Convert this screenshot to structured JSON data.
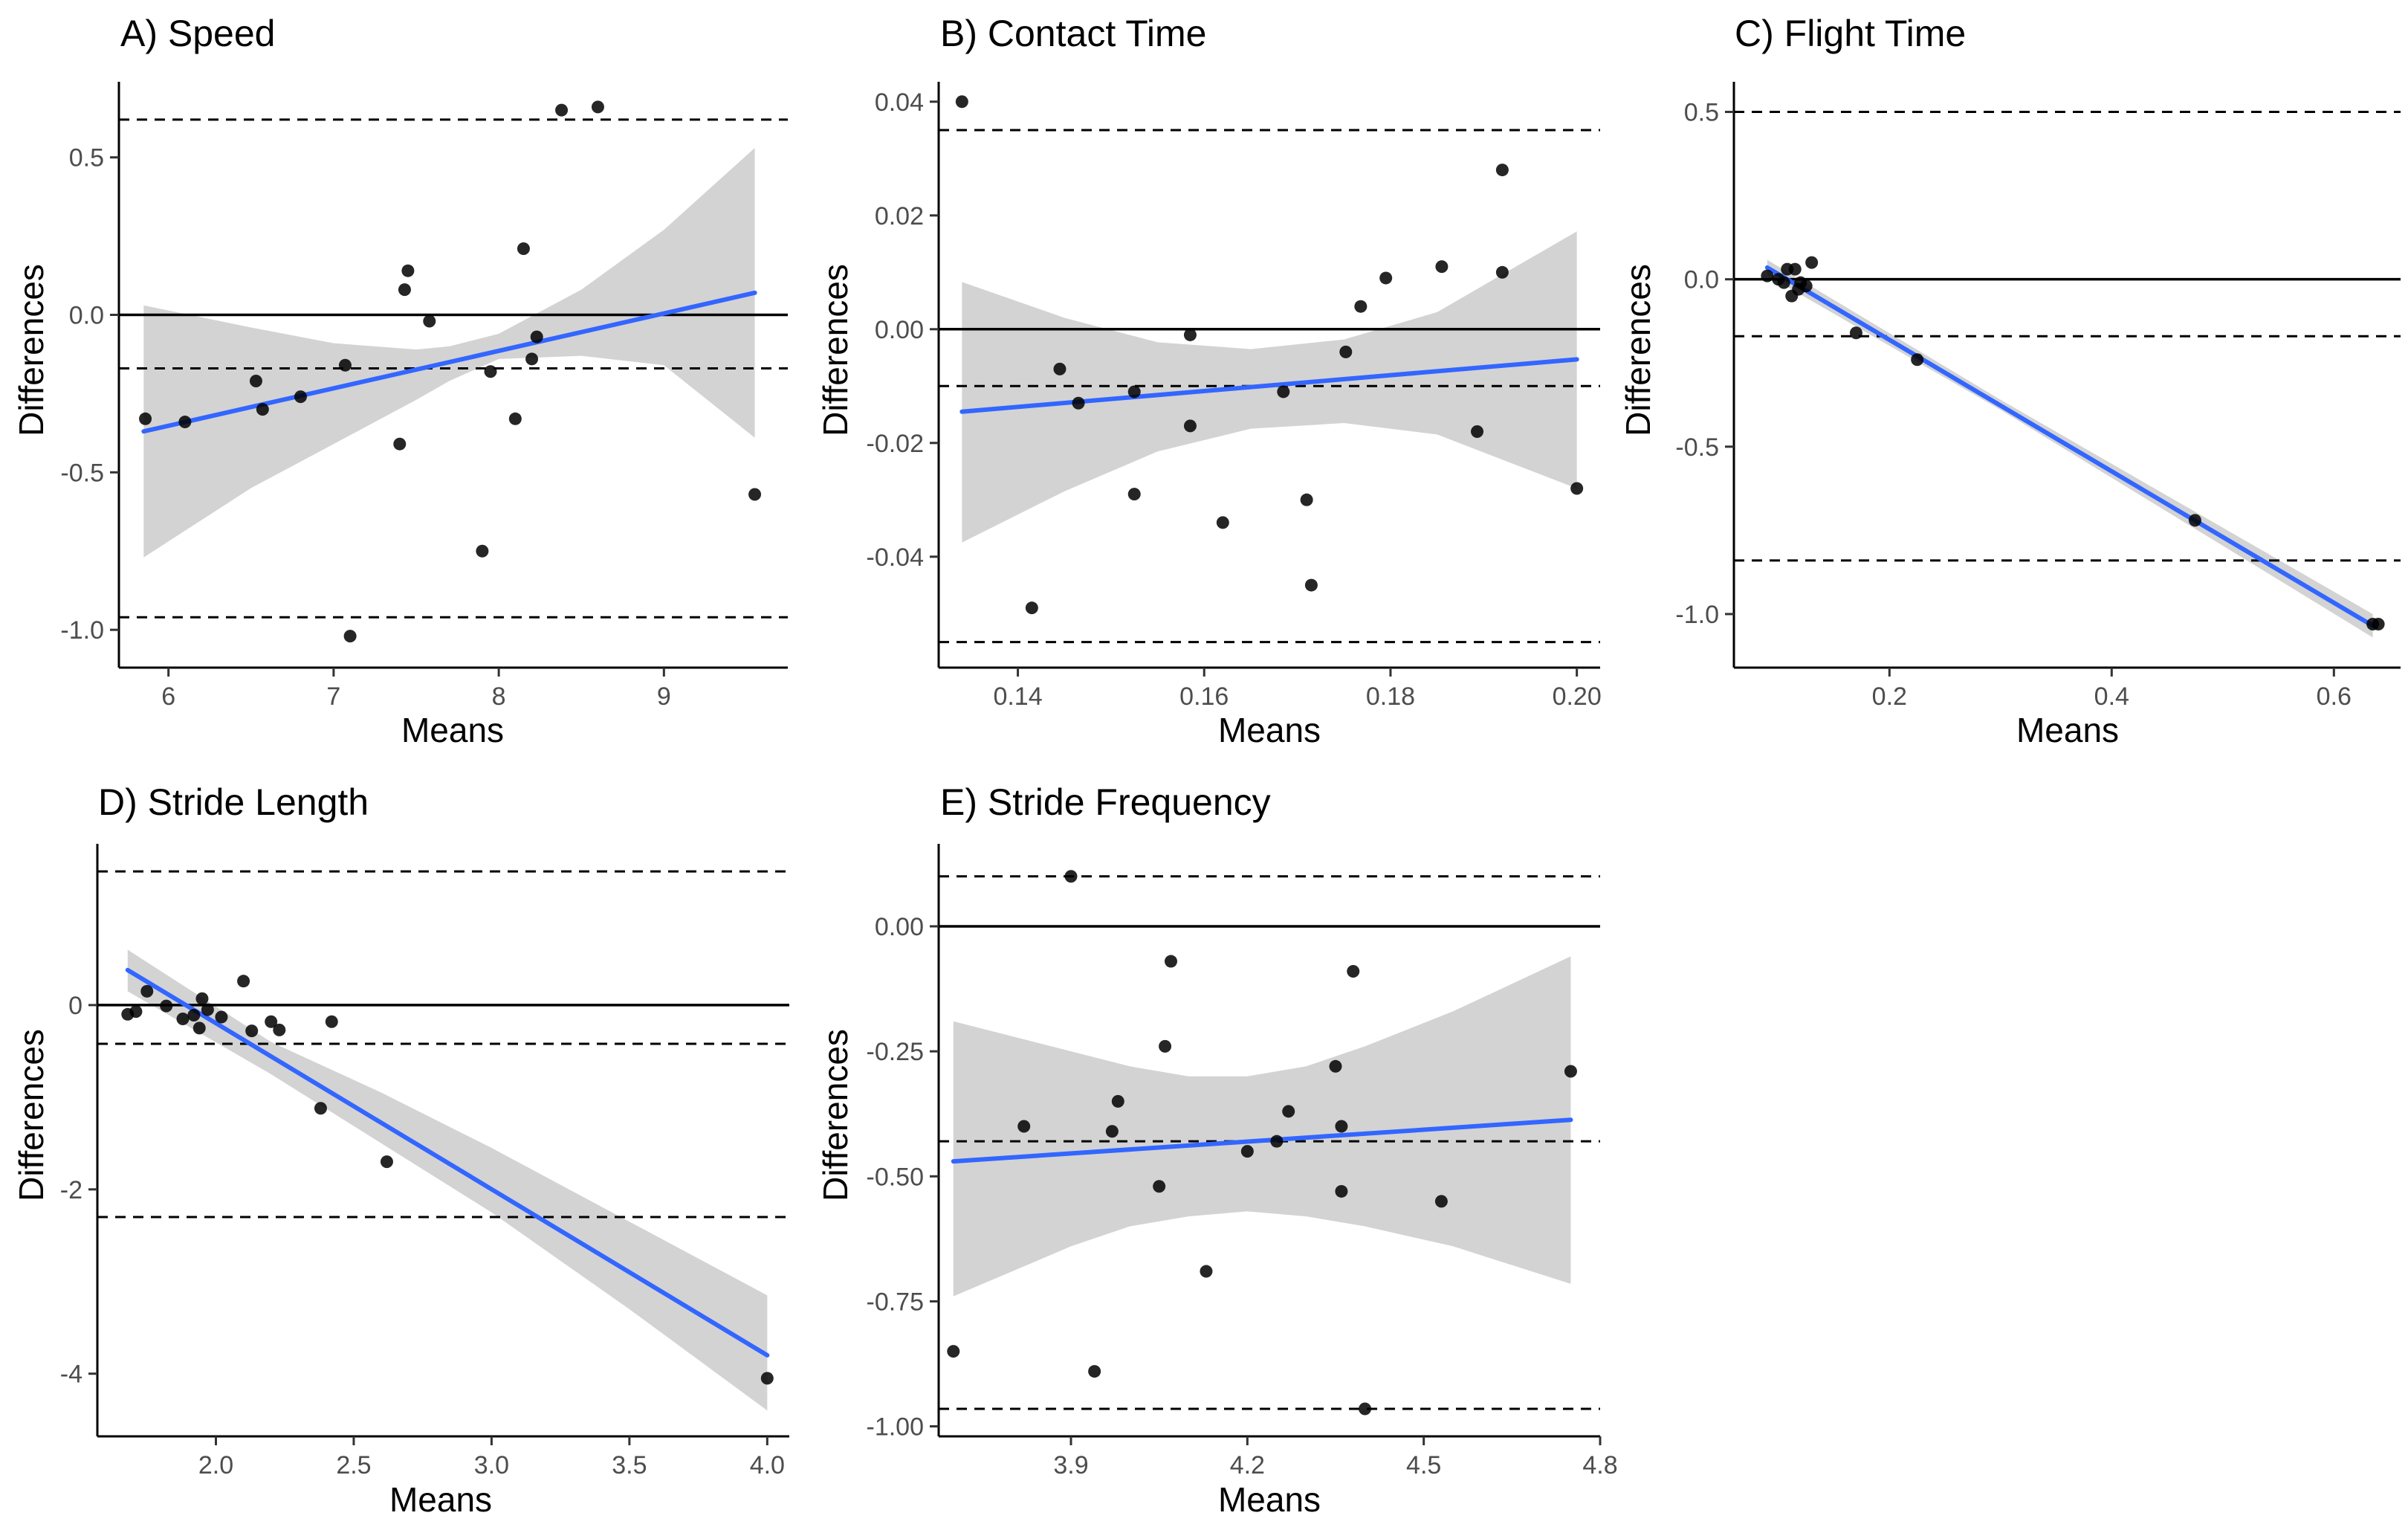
{
  "figure": {
    "colors": {
      "points": "#000000",
      "fit_line": "#3366FF",
      "confidence_band": "#d3d3d3",
      "reference_lines": "#000000"
    }
  },
  "chart_data": [
    {
      "type": "scatter",
      "title": "A) Speed",
      "xlabel": "Means",
      "ylabel": "Differences",
      "xlim": [
        5.7,
        9.75
      ],
      "ylim": [
        -1.12,
        0.74
      ],
      "xticks": [
        6,
        7,
        8,
        9
      ],
      "yticks": [
        0.5,
        0.0,
        -0.5,
        -1.0
      ],
      "ytick_labels": [
        "0.5",
        "0.0",
        "-0.5",
        "-1.0"
      ],
      "bias": -0.17,
      "loa_upper": 0.62,
      "loa_lower": -0.96,
      "zero_line": 0,
      "fit": {
        "x": [
          5.85,
          9.55
        ],
        "y": [
          -0.37,
          0.07
        ]
      },
      "ci_band": {
        "x": [
          5.85,
          6.5,
          7.0,
          7.5,
          7.7,
          8.0,
          8.5,
          9.0,
          9.55
        ],
        "upper": [
          0.03,
          -0.04,
          -0.09,
          -0.11,
          -0.1,
          -0.06,
          0.08,
          0.27,
          0.53
        ],
        "lower": [
          -0.77,
          -0.55,
          -0.41,
          -0.27,
          -0.21,
          -0.14,
          -0.13,
          -0.16,
          -0.39
        ]
      },
      "points": [
        [
          5.86,
          -0.33
        ],
        [
          6.1,
          -0.34
        ],
        [
          6.53,
          -0.21
        ],
        [
          6.57,
          -0.3
        ],
        [
          6.8,
          -0.26
        ],
        [
          7.07,
          -0.16
        ],
        [
          7.1,
          -1.02
        ],
        [
          7.4,
          -0.41
        ],
        [
          7.43,
          0.08
        ],
        [
          7.45,
          0.14
        ],
        [
          7.58,
          -0.02
        ],
        [
          7.9,
          -0.75
        ],
        [
          7.95,
          -0.18
        ],
        [
          8.1,
          -0.33
        ],
        [
          8.15,
          0.21
        ],
        [
          8.2,
          -0.14
        ],
        [
          8.23,
          -0.07
        ],
        [
          8.38,
          0.65
        ],
        [
          8.6,
          0.66
        ],
        [
          9.55,
          -0.57
        ]
      ]
    },
    {
      "type": "scatter",
      "title": "B) Contact Time",
      "xlabel": "Means",
      "ylabel": "Differences",
      "xlim": [
        0.1315,
        0.2025
      ],
      "ylim": [
        -0.0595,
        0.0435
      ],
      "xticks": [
        0.14,
        0.16,
        0.18,
        0.2
      ],
      "xtick_labels": [
        "0.14",
        "0.16",
        "0.18",
        "0.20"
      ],
      "yticks": [
        0.04,
        0.02,
        0.0,
        -0.02,
        -0.04
      ],
      "ytick_labels": [
        "0.04",
        "0.02",
        "0.00",
        "-0.02",
        "-0.04"
      ],
      "bias": -0.01,
      "loa_upper": 0.035,
      "loa_lower": -0.055,
      "zero_line": 0,
      "fit": {
        "x": [
          0.134,
          0.2
        ],
        "y": [
          -0.0145,
          -0.0053
        ]
      },
      "ci_band": {
        "x": [
          0.134,
          0.145,
          0.155,
          0.165,
          0.175,
          0.185,
          0.2
        ],
        "upper": [
          0.0083,
          0.002,
          -0.0023,
          -0.0035,
          -0.0018,
          0.003,
          0.0172
        ],
        "lower": [
          -0.0375,
          -0.0285,
          -0.0215,
          -0.0175,
          -0.0165,
          -0.0185,
          -0.028
        ]
      },
      "points": [
        [
          0.134,
          0.04
        ],
        [
          0.1415,
          -0.049
        ],
        [
          0.1445,
          -0.007
        ],
        [
          0.1465,
          -0.013
        ],
        [
          0.1525,
          -0.011
        ],
        [
          0.1525,
          -0.029
        ],
        [
          0.1585,
          -0.001
        ],
        [
          0.1585,
          -0.017
        ],
        [
          0.162,
          -0.034
        ],
        [
          0.1685,
          -0.011
        ],
        [
          0.171,
          -0.03
        ],
        [
          0.1715,
          -0.045
        ],
        [
          0.1752,
          -0.004
        ],
        [
          0.1768,
          0.004
        ],
        [
          0.1795,
          0.009
        ],
        [
          0.1855,
          0.011
        ],
        [
          0.1893,
          -0.018
        ],
        [
          0.192,
          0.028
        ],
        [
          0.192,
          0.01
        ],
        [
          0.2,
          -0.028
        ]
      ]
    },
    {
      "type": "scatter",
      "title": "C) Flight Time",
      "xlabel": "Means",
      "ylabel": "Differences",
      "xlim": [
        0.06,
        0.66
      ],
      "ylim": [
        -1.16,
        0.59
      ],
      "xticks": [
        0.2,
        0.4,
        0.6
      ],
      "yticks": [
        0.5,
        0.0,
        -0.5,
        -1.0
      ],
      "ytick_labels": [
        "0.5",
        "0.0",
        "-0.5",
        "-1.0"
      ],
      "bias": -0.17,
      "loa_upper": 0.5,
      "loa_lower": -0.84,
      "zero_line": 0,
      "fit": {
        "x": [
          0.09,
          0.635
        ],
        "y": [
          0.035,
          -1.035
        ]
      },
      "ci_band": {
        "x": [
          0.09,
          0.3,
          0.635
        ],
        "upper": [
          0.058,
          -0.36,
          -1.0
        ],
        "lower": [
          0.012,
          -0.39,
          -1.07
        ]
      },
      "points": [
        [
          0.09,
          0.01
        ],
        [
          0.1,
          0.0
        ],
        [
          0.105,
          -0.01
        ],
        [
          0.108,
          0.03
        ],
        [
          0.112,
          -0.05
        ],
        [
          0.115,
          0.03
        ],
        [
          0.118,
          -0.03
        ],
        [
          0.12,
          -0.01
        ],
        [
          0.125,
          -0.02
        ],
        [
          0.13,
          0.05
        ],
        [
          0.17,
          -0.16
        ],
        [
          0.225,
          -0.24
        ],
        [
          0.475,
          -0.72
        ],
        [
          0.635,
          -1.03
        ],
        [
          0.64,
          -1.03
        ]
      ]
    },
    {
      "type": "scatter",
      "title": "D) Stride Length",
      "xlabel": "Means",
      "ylabel": "Differences",
      "xlim": [
        1.57,
        4.08
      ],
      "ylim": [
        -4.68,
        1.75
      ],
      "xticks": [
        2.0,
        2.5,
        3.0,
        3.5,
        4.0
      ],
      "xtick_labels": [
        "2.0",
        "2.5",
        "3.0",
        "3.5",
        "4.0"
      ],
      "yticks": [
        0,
        -2,
        -4
      ],
      "ytick_labels": [
        "0",
        "-2",
        "-4"
      ],
      "bias": -0.42,
      "loa_upper": 1.45,
      "loa_lower": -2.3,
      "zero_line": 0,
      "fit": {
        "x": [
          1.68,
          4.0
        ],
        "y": [
          0.38,
          -3.8
        ]
      },
      "ci_band": {
        "x": [
          1.68,
          2.2,
          2.6,
          3.0,
          3.5,
          4.0
        ],
        "upper": [
          0.6,
          -0.4,
          -0.95,
          -1.55,
          -2.35,
          -3.15
        ],
        "lower": [
          0.15,
          -0.75,
          -1.5,
          -2.25,
          -3.3,
          -4.4
        ]
      },
      "points": [
        [
          1.68,
          -0.1
        ],
        [
          1.71,
          -0.07
        ],
        [
          1.75,
          0.15
        ],
        [
          1.82,
          -0.01
        ],
        [
          1.88,
          -0.15
        ],
        [
          1.92,
          -0.11
        ],
        [
          1.94,
          -0.25
        ],
        [
          1.95,
          0.07
        ],
        [
          1.97,
          -0.05
        ],
        [
          2.02,
          -0.13
        ],
        [
          2.1,
          0.26
        ],
        [
          2.13,
          -0.28
        ],
        [
          2.2,
          -0.18
        ],
        [
          2.23,
          -0.27
        ],
        [
          2.38,
          -1.12
        ],
        [
          2.42,
          -0.18
        ],
        [
          2.62,
          -1.7
        ],
        [
          4.0,
          -4.05
        ]
      ]
    },
    {
      "type": "scatter",
      "title": "E) Stride Frequency",
      "xlabel": "Means",
      "ylabel": "Differences",
      "xlim": [
        3.675,
        4.8
      ],
      "ylim": [
        -1.02,
        0.165
      ],
      "xticks": [
        3.9,
        4.2,
        4.5,
        4.8
      ],
      "xtick_labels": [
        "3.9",
        "4.2",
        "4.5",
        "4.8"
      ],
      "yticks": [
        0.0,
        -0.25,
        -0.5,
        -0.75,
        -1.0
      ],
      "ytick_labels": [
        "0.00",
        "-0.25",
        "-0.50",
        "-0.75",
        "-1.00"
      ],
      "bias": -0.43,
      "loa_upper": 0.1,
      "loa_lower": -0.965,
      "zero_line": 0,
      "fit": {
        "x": [
          3.7,
          4.75
        ],
        "y": [
          -0.47,
          -0.387
        ]
      },
      "ci_band": {
        "x": [
          3.7,
          3.9,
          4.0,
          4.1,
          4.2,
          4.3,
          4.4,
          4.55,
          4.75
        ],
        "upper": [
          -0.19,
          -0.25,
          -0.28,
          -0.3,
          -0.3,
          -0.28,
          -0.24,
          -0.17,
          -0.06
        ],
        "lower": [
          -0.74,
          -0.64,
          -0.6,
          -0.58,
          -0.57,
          -0.58,
          -0.6,
          -0.64,
          -0.715
        ]
      },
      "points": [
        [
          3.7,
          -0.85
        ],
        [
          3.82,
          -0.4
        ],
        [
          3.9,
          0.1
        ],
        [
          3.94,
          -0.89
        ],
        [
          3.97,
          -0.41
        ],
        [
          3.98,
          -0.35
        ],
        [
          4.05,
          -0.52
        ],
        [
          4.06,
          -0.24
        ],
        [
          4.07,
          -0.07
        ],
        [
          4.13,
          -0.69
        ],
        [
          4.2,
          -0.45
        ],
        [
          4.25,
          -0.43
        ],
        [
          4.27,
          -0.37
        ],
        [
          4.35,
          -0.28
        ],
        [
          4.36,
          -0.4
        ],
        [
          4.36,
          -0.53
        ],
        [
          4.38,
          -0.09
        ],
        [
          4.4,
          -0.965
        ],
        [
          4.53,
          -0.55
        ],
        [
          4.75,
          -0.29
        ]
      ]
    }
  ]
}
